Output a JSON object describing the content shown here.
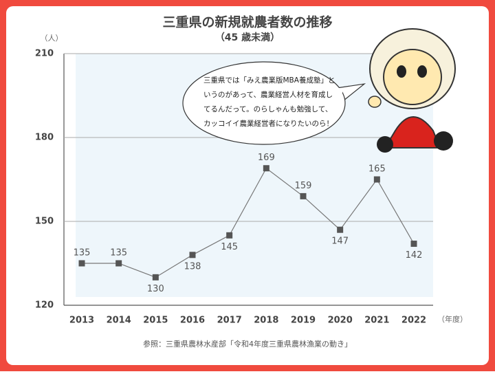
{
  "chart_data": {
    "type": "line",
    "title": "三重県の新規就農者数の推移",
    "subtitle": "（45 歳未満）",
    "y_unit": "（人）",
    "x_unit": "（年度）",
    "categories": [
      "2013",
      "2014",
      "2015",
      "2016",
      "2017",
      "2018",
      "2019",
      "2020",
      "2021",
      "2022"
    ],
    "values": [
      135,
      135,
      130,
      138,
      145,
      169,
      159,
      147,
      165,
      142
    ],
    "color": "#777777",
    "marker_color": "#555555",
    "ylim": [
      120,
      210
    ],
    "yticks": [
      120,
      150,
      180,
      210
    ],
    "grid": true,
    "annotation_lines": [
      "三重県では「みえ農業版MBA養成塾」と",
      "いうのがあって、農業経営人材を育成し",
      "てるんだって。のらしゃんも勉強して、",
      "カッコイイ農業経営者になりたいのら！"
    ],
    "source": "参照：三重県農林水産部「令和4年度三重県農林漁業の動き」"
  }
}
